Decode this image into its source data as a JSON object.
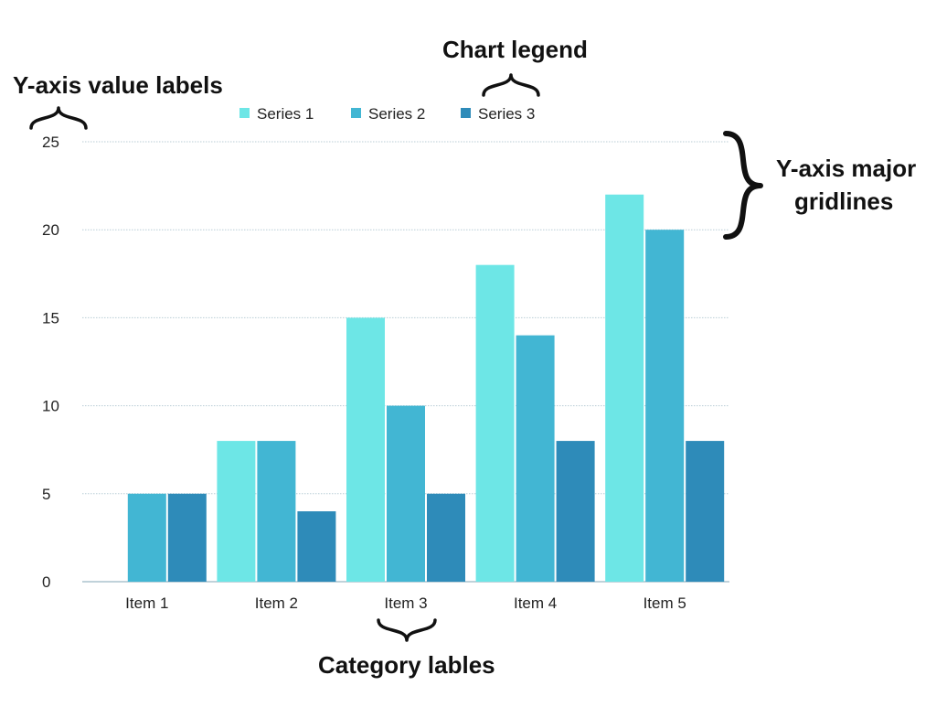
{
  "chart_data": {
    "type": "bar",
    "categories": [
      "Item 1",
      "Item 2",
      "Item 3",
      "Item 4",
      "Item 5"
    ],
    "series": [
      {
        "name": "Series 1",
        "values": [
          0,
          8,
          15,
          18,
          22
        ],
        "color": "#6de6e6"
      },
      {
        "name": "Series 2",
        "values": [
          5,
          8,
          10,
          14,
          20
        ],
        "color": "#42b6d3"
      },
      {
        "name": "Series 3",
        "values": [
          5,
          4,
          5,
          8,
          8
        ],
        "color": "#2e8bb9"
      }
    ],
    "y_ticks": [
      "0",
      "5",
      "10",
      "15",
      "20",
      "25"
    ],
    "ylim": [
      0,
      25
    ],
    "grid": true,
    "legend_position": "top-center",
    "annotations": {
      "y_axis_value_labels": "Y-axis value labels",
      "chart_legend": "Chart legend",
      "y_axis_gridlines_line1": "Y-axis major",
      "y_axis_gridlines_line2": "gridlines",
      "category_labels": "Category lables"
    }
  }
}
